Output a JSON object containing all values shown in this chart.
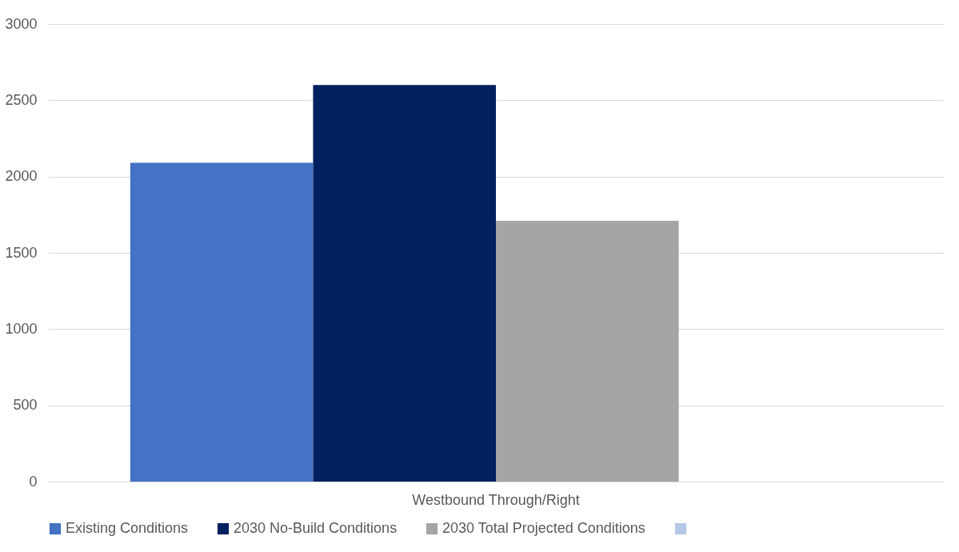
{
  "chart_data": {
    "type": "bar",
    "categories": [
      "Westbound Through/Right"
    ],
    "series": [
      {
        "name": "Existing Conditions",
        "color": "#4472c4",
        "values": [
          2090
        ]
      },
      {
        "name": "2030 No-Build Conditions",
        "color": "#002060",
        "values": [
          2600
        ]
      },
      {
        "name": "2030 Total Projected Conditions",
        "color": "#a5a5a5",
        "values": [
          1710
        ]
      },
      {
        "color": "#b4c7e7",
        "values": [
          null
        ]
      }
    ],
    "ylim": [
      0,
      3000
    ],
    "yticks": [
      0,
      500,
      1000,
      1500,
      2000,
      2500,
      3000
    ],
    "grid": "y",
    "legend": "bottom"
  }
}
